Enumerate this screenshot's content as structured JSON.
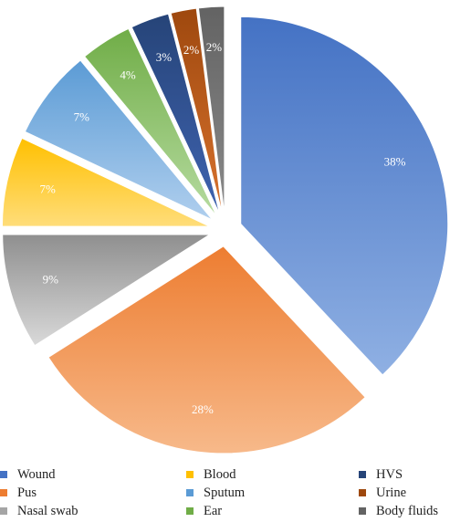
{
  "chart_data": {
    "type": "pie",
    "categories": [
      "Wound",
      "Pus",
      "Nasal swab",
      "Blood",
      "Sputum",
      "Ear",
      "HVS",
      "Urine",
      "Body fluids"
    ],
    "values": [
      38,
      28,
      9,
      7,
      7,
      4,
      3,
      2,
      2
    ],
    "data_labels": [
      "38%",
      "28%",
      "9%",
      "7%",
      "7%",
      "4%",
      "3%",
      "2%",
      "2%"
    ],
    "colors": [
      {
        "light": "#8fb0e3",
        "dark": "#4472c4"
      },
      {
        "light": "#f7b98a",
        "dark": "#ed7d31"
      },
      {
        "light": "#d9d9d9",
        "dark": "#8f8f8f"
      },
      {
        "light": "#ffdd7a",
        "dark": "#ffc000"
      },
      {
        "light": "#b0cfee",
        "dark": "#5b9bd5"
      },
      {
        "light": "#b6dba0",
        "dark": "#70ad47"
      },
      {
        "light": "#3f63b0",
        "dark": "#264478"
      },
      {
        "light": "#d8722e",
        "dark": "#9e480e"
      },
      {
        "light": "#8a8a8a",
        "dark": "#636363"
      }
    ],
    "legend_swatch_colors": [
      "#4472c4",
      "#ed7d31",
      "#a5a5a5",
      "#ffc000",
      "#5b9bd5",
      "#70ad47",
      "#264478",
      "#9e480e",
      "#636363"
    ],
    "exploded": true,
    "legend_position": "bottom"
  }
}
